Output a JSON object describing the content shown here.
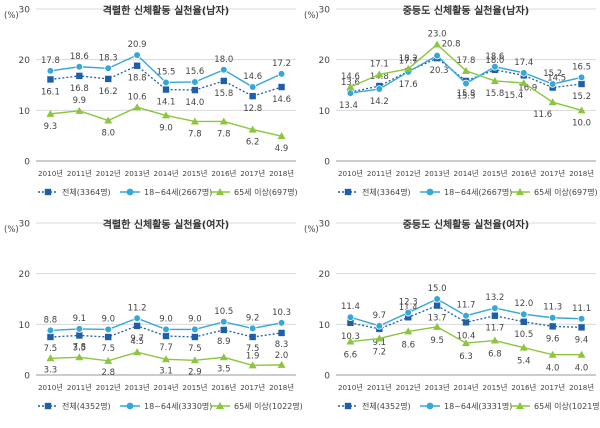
{
  "legend_labels": {
    "total_prefix": "전체",
    "adult_prefix": "18~64세",
    "elderly_prefix": "65세 이상"
  },
  "chart_data": [
    {
      "type": "line",
      "title": "격렬한 신체활동 실천율(남자)",
      "ylabel": "(%)",
      "ylim": [
        0,
        30
      ],
      "yticks": [
        0,
        10,
        20,
        30
      ],
      "categories": [
        "2010년",
        "2011년",
        "2012년",
        "2013년",
        "2014년",
        "2015년",
        "2016년",
        "2017년",
        "2018년"
      ],
      "series": [
        {
          "key": "total",
          "name": "전체(3364명)",
          "values": [
            16.1,
            16.8,
            16.2,
            18.8,
            14.1,
            14.0,
            15.8,
            12.8,
            14.6
          ],
          "color": "#1f5fa8",
          "marker": "square",
          "dash": true
        },
        {
          "key": "adult",
          "name": "18~64세(2667명)",
          "values": [
            17.8,
            18.6,
            18.3,
            20.9,
            15.5,
            15.6,
            18.0,
            14.6,
            17.2
          ],
          "color": "#35a7d8",
          "marker": "circle",
          "dash": false
        },
        {
          "key": "elderly",
          "name": "65세 이상(697명)",
          "values": [
            9.3,
            9.9,
            8.0,
            10.6,
            9.0,
            7.8,
            7.8,
            6.2,
            4.9
          ],
          "color": "#8cc63f",
          "marker": "triangle",
          "dash": false
        }
      ]
    },
    {
      "type": "line",
      "title": "중등도 신체활동 실천율(남자)",
      "ylabel": "(%)",
      "ylim": [
        0,
        30
      ],
      "yticks": [
        0,
        10,
        20,
        30
      ],
      "categories": [
        "2010년",
        "2011년",
        "2012년",
        "2013년",
        "2014년",
        "2015년",
        "2016년",
        "2017년",
        "2018년"
      ],
      "series": [
        {
          "key": "total",
          "name": "전체(3364명)",
          "values": [
            13.6,
            14.8,
            17.7,
            20.3,
            15.8,
            18.0,
            16.9,
            14.5,
            15.2
          ],
          "color": "#1f5fa8",
          "marker": "square",
          "dash": true
        },
        {
          "key": "adult",
          "name": "18~64세(2667명)",
          "values": [
            13.4,
            14.2,
            17.6,
            20.8,
            15.3,
            18.6,
            17.4,
            15.2,
            16.5
          ],
          "color": "#35a7d8",
          "marker": "circle",
          "dash": false
        },
        {
          "key": "elderly",
          "name": "65세 이상(697명)",
          "values": [
            14.6,
            17.1,
            18.2,
            23.0,
            17.8,
            15.8,
            15.4,
            11.6,
            10.0
          ],
          "color": "#8cc63f",
          "marker": "triangle",
          "dash": false
        }
      ]
    },
    {
      "type": "line",
      "title": "격렬한 신체활동 실천율(여자)",
      "ylabel": "(%)",
      "ylim": [
        0,
        30
      ],
      "yticks": [
        0,
        10,
        20,
        30
      ],
      "categories": [
        "2010년",
        "2011년",
        "2012년",
        "2013년",
        "2014년",
        "2015년",
        "2016년",
        "2017년",
        "2018년"
      ],
      "series": [
        {
          "key": "total",
          "name": "전체(4352명)",
          "values": [
            7.5,
            7.8,
            7.5,
            9.7,
            7.7,
            7.5,
            8.9,
            7.5,
            8.3
          ],
          "color": "#1f5fa8",
          "marker": "square",
          "dash": true
        },
        {
          "key": "adult",
          "name": "18~64세(3330명)",
          "values": [
            8.8,
            9.1,
            9.0,
            11.2,
            9.0,
            9.0,
            10.5,
            9.2,
            10.3
          ],
          "color": "#35a7d8",
          "marker": "circle",
          "dash": false
        },
        {
          "key": "elderly",
          "name": "65세 이상(1022명)",
          "values": [
            3.3,
            3.5,
            2.8,
            4.5,
            3.1,
            2.9,
            3.5,
            1.9,
            2.0
          ],
          "color": "#8cc63f",
          "marker": "triangle",
          "dash": false
        }
      ]
    },
    {
      "type": "line",
      "title": "중등도 신체활동 실천율(여자)",
      "ylabel": "(%)",
      "ylim": [
        0,
        30
      ],
      "yticks": [
        0,
        10,
        20,
        30
      ],
      "categories": [
        "2010년",
        "2011년",
        "2012년",
        "2013년",
        "2014년",
        "2015년",
        "2016년",
        "2017년",
        "2018년"
      ],
      "series": [
        {
          "key": "total",
          "name": "전체(4352명)",
          "values": [
            10.3,
            9.1,
            11.4,
            13.7,
            10.4,
            11.7,
            10.5,
            9.6,
            9.4
          ],
          "color": "#1f5fa8",
          "marker": "square",
          "dash": true
        },
        {
          "key": "adult",
          "name": "18~64세(3331명)",
          "values": [
            11.4,
            9.7,
            12.3,
            15.0,
            11.7,
            13.2,
            12.0,
            11.3,
            11.1
          ],
          "color": "#35a7d8",
          "marker": "circle",
          "dash": false
        },
        {
          "key": "elderly",
          "name": "65세 이상(1021명)",
          "values": [
            6.6,
            7.2,
            8.6,
            9.5,
            6.3,
            6.8,
            5.4,
            4.0,
            4.0
          ],
          "color": "#8cc63f",
          "marker": "triangle",
          "dash": false
        }
      ]
    }
  ]
}
